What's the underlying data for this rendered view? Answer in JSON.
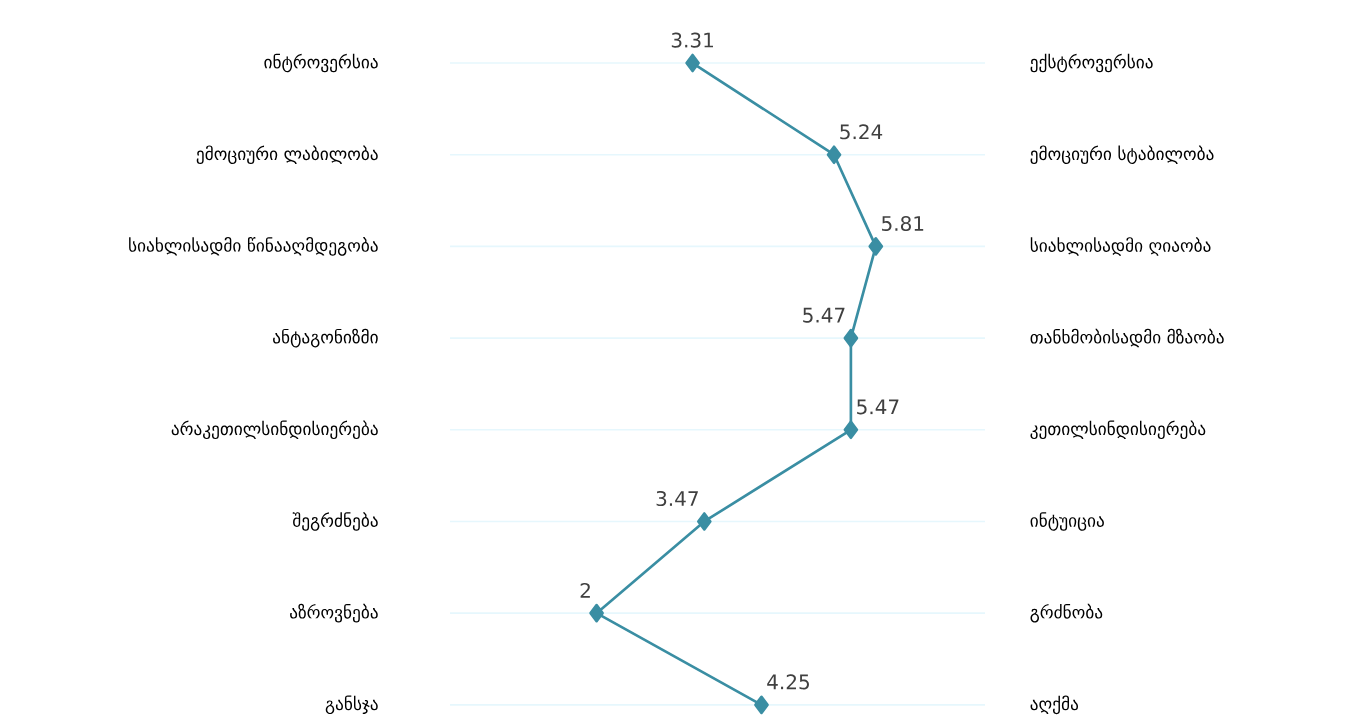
{
  "chart_data": {
    "type": "line",
    "orientation": "horizontal",
    "categories": [
      "ინტროვერსია",
      "ემოციური ლაბილობა",
      "სიახლისადმი წინააღმდეგობა",
      "ანტაგონიზმი",
      "არაკეთილსინდისიერება",
      "შეგრძნება",
      "აზროვნება",
      "განსჯა"
    ],
    "y2_categories": [
      "ექსტროვერსია",
      "ემოციური სტაბილობა",
      "სიახლისადმი ღიაობა",
      "თანხმობისადმი მზაობა",
      "კეთილსინდისიერება",
      "ინტუიცია",
      "გრძნობა",
      "აღქმა"
    ],
    "values": [
      3.31,
      5.24,
      5.81,
      5.47,
      5.47,
      3.47,
      2,
      4.25
    ],
    "color": "#3a8ea3",
    "xlim": [
      0,
      7.3
    ],
    "grid": "y",
    "marker": "diamond",
    "line_style": "solid",
    "data_labels": true,
    "tick_labels": "y"
  }
}
